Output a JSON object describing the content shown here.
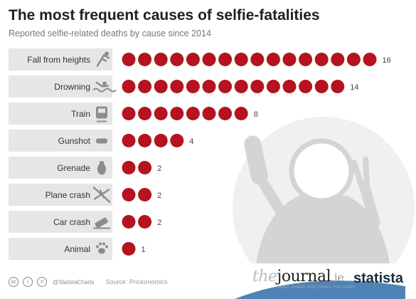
{
  "header": {
    "title": "The most frequent causes of selfie-fatalities",
    "subtitle": "Reported selfie-related deaths by cause since 2014"
  },
  "footer": {
    "handle": "@StatistaCharts",
    "source": "Source: Priceonomics",
    "brand_journal_the": "the",
    "brand_journal_name": "journal",
    "brand_journal_tld": ".ie",
    "brand_journal_tagline": "READ, SHARE AND SHAPE THE NEWS",
    "brand_statista": "statista"
  },
  "colors": {
    "dot": "#b5131f",
    "band": "#e6e6e6",
    "icon": "#8c8c8c",
    "silhouette": "#d4d4d4"
  },
  "chart_data": {
    "type": "bar",
    "title": "The most frequent causes of selfie-fatalities",
    "subtitle": "Reported selfie-related deaths by cause since 2014",
    "unit": "deaths",
    "categories": [
      "Fall from heights",
      "Drowning",
      "Train",
      "Gunshot",
      "Grenade",
      "Plane crash",
      "Car crash",
      "Animal"
    ],
    "values": [
      16,
      14,
      8,
      4,
      2,
      2,
      2,
      1
    ],
    "icons": [
      "falling-person-icon",
      "drowning-person-icon",
      "train-icon",
      "gunshot-icon",
      "grenade-icon",
      "plane-crash-icon",
      "car-crash-icon",
      "paw-print-icon"
    ],
    "ylim": [
      0,
      16
    ],
    "grid": false,
    "legend": "none"
  }
}
